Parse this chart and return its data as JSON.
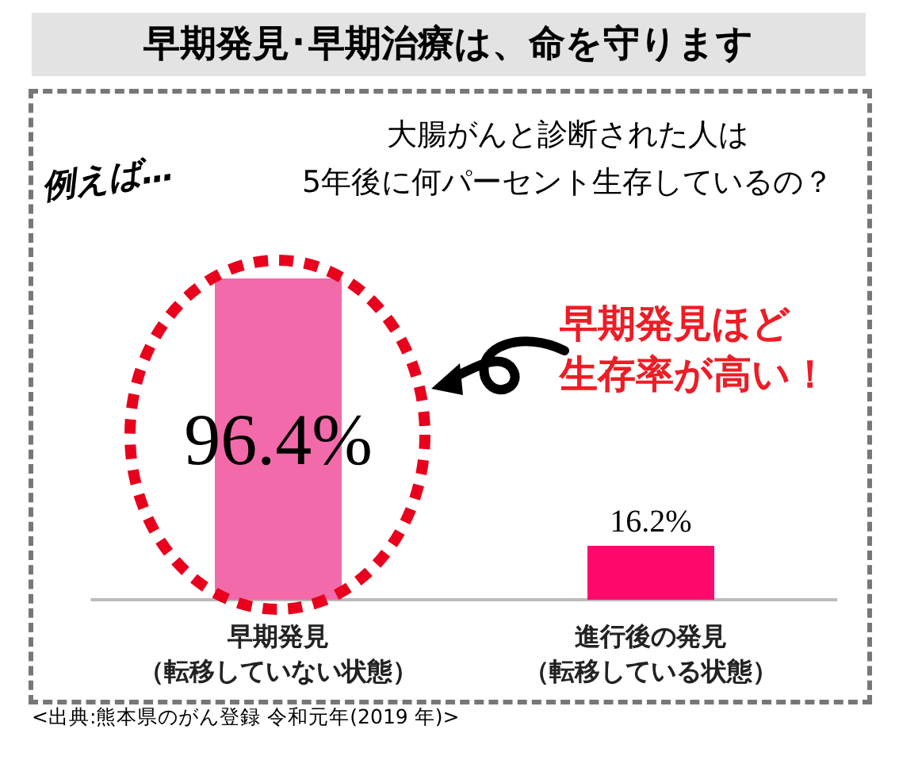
{
  "chart_data": {
    "type": "bar",
    "title": "早期発見･早期治療は、命を守ります",
    "subtitle": "大腸がんと診断された人は\n5年後に何パーセント生存しているの？",
    "categories": [
      "早期発見（転移していない状態）",
      "進行後の発見（転移している状態）"
    ],
    "values": [
      96.4,
      16.2
    ],
    "colors": [
      "#f26aa9",
      "#ff0a6c"
    ],
    "value_labels": [
      "96.4%",
      "16.2%"
    ],
    "annotations": [
      "例えば…",
      "早期発見ほど",
      "生存率が高い！",
      "<出典:熊本県のがん登録 令和元年(2019 年)>"
    ]
  }
}
